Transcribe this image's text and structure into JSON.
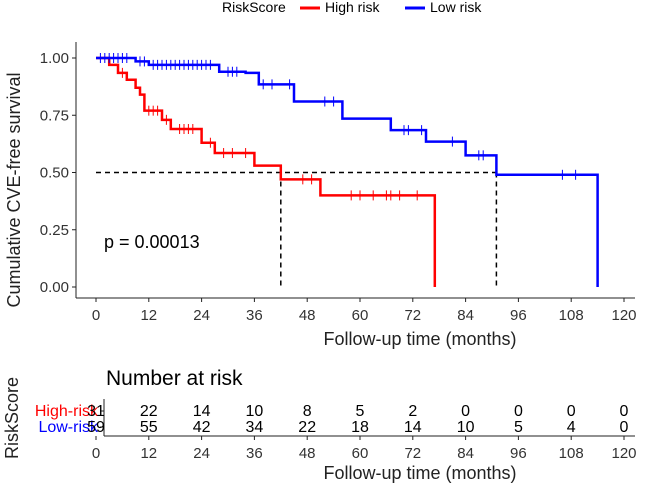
{
  "legend": {
    "title": "RiskScore",
    "items": [
      {
        "label": "High risk",
        "color": "#ff0000"
      },
      {
        "label": "Low risk",
        "color": "#0000ff"
      }
    ]
  },
  "chart_data": {
    "type": "line",
    "title": "",
    "xlabel": "Follow-up time (months)",
    "ylabel": "Cumulative CVE-free survival",
    "xlim": [
      0,
      120
    ],
    "ylim": [
      0,
      1
    ],
    "xticks": [
      0,
      12,
      24,
      36,
      48,
      60,
      72,
      84,
      96,
      108,
      120
    ],
    "yticks": [
      0.0,
      0.25,
      0.5,
      0.75,
      1.0
    ],
    "ytick_labels": [
      "0.00",
      "0.25",
      "0.50",
      "0.75",
      "1.00"
    ],
    "grid": false,
    "annotation": "p = 0.00013",
    "median_line": {
      "y": 0.5,
      "x_values": [
        42,
        91
      ]
    },
    "series": [
      {
        "name": "High risk",
        "color": "#ff0000",
        "steps": [
          [
            0,
            1.0
          ],
          [
            3,
            0.97
          ],
          [
            5,
            0.935
          ],
          [
            7,
            0.905
          ],
          [
            9,
            0.87
          ],
          [
            10,
            0.84
          ],
          [
            11,
            0.77
          ],
          [
            15,
            0.73
          ],
          [
            17,
            0.69
          ],
          [
            24,
            0.63
          ],
          [
            27,
            0.585
          ],
          [
            36,
            0.53
          ],
          [
            42,
            0.47
          ],
          [
            51,
            0.4
          ],
          [
            77,
            0.4
          ],
          [
            77,
            0.0
          ]
        ],
        "censored": [
          6,
          12,
          13,
          14,
          16,
          19,
          20,
          21,
          22,
          26,
          29,
          31,
          34,
          47,
          49,
          58,
          60,
          63,
          66,
          67,
          69,
          73
        ]
      },
      {
        "name": "Low risk",
        "color": "#0000ff",
        "steps": [
          [
            0,
            1.0
          ],
          [
            9,
            0.985
          ],
          [
            12,
            0.97
          ],
          [
            28,
            0.94
          ],
          [
            34,
            0.935
          ],
          [
            37,
            0.885
          ],
          [
            45,
            0.81
          ],
          [
            56,
            0.735
          ],
          [
            67,
            0.685
          ],
          [
            75,
            0.635
          ],
          [
            84,
            0.575
          ],
          [
            91,
            0.49
          ],
          [
            114,
            0.49
          ],
          [
            114,
            0.0
          ]
        ],
        "censored": [
          1,
          2,
          3,
          4,
          5,
          6,
          7,
          10,
          11,
          13,
          14,
          15,
          16,
          17,
          18,
          19,
          20,
          21,
          22,
          23,
          24,
          25,
          26,
          30,
          31,
          32,
          38,
          40,
          44,
          52,
          54,
          70,
          71,
          74,
          81,
          87,
          88,
          106,
          109
        ]
      }
    ]
  },
  "risk_table": {
    "title": "Number at risk",
    "ylabel": "RiskScore",
    "xlabel": "Follow-up time (months)",
    "times": [
      0,
      12,
      24,
      36,
      48,
      60,
      72,
      84,
      96,
      108,
      120
    ],
    "rows": [
      {
        "label": "High-risk",
        "color": "#ff0000",
        "counts": [
          31,
          22,
          14,
          10,
          8,
          5,
          2,
          0,
          0,
          0,
          0
        ]
      },
      {
        "label": "Low-risk",
        "color": "#0000ff",
        "counts": [
          59,
          55,
          42,
          34,
          22,
          18,
          14,
          10,
          5,
          4,
          0
        ]
      }
    ]
  }
}
